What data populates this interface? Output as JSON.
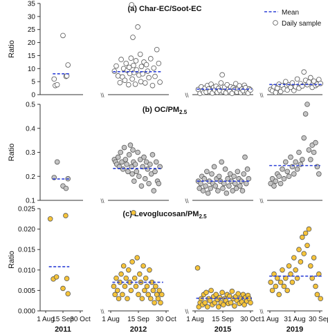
{
  "legend": {
    "mean_label": "Mean",
    "sample_label": "Daily sample"
  },
  "colors": {
    "mean_line": "#2b3fd6",
    "grey_fill": "#c4c4c4",
    "yellow_fill": "#f6c43a",
    "marker_edge": "#555555"
  },
  "x_ticks": [
    "1 Aug",
    "15 Sep",
    "30 Oct",
    "1 Aug",
    "15 Sep",
    "30 Oct",
    "1 Aug",
    "15 Sep",
    "30 Oct",
    "1 Aug",
    "31 Aug",
    "30 Sep"
  ],
  "years": [
    "2011",
    "2012",
    "2015",
    "2019"
  ],
  "break_mark": "\\\\",
  "chart_data": [
    {
      "type": "scatter",
      "title": "(a) Char-EC/Soot-EC",
      "ylabel": "Ratio",
      "ylim": [
        0,
        35
      ],
      "yticks": [
        0,
        5,
        10,
        15,
        20,
        25,
        30,
        35
      ],
      "marker": "open",
      "series": [
        {
          "year": "2011",
          "mean": 8.0,
          "x": [
            22,
            25,
            30,
            45,
            53,
            55,
            58
          ],
          "y": [
            6.0,
            3.5,
            3.8,
            22.7,
            7.0,
            7.2,
            11.4
          ]
        },
        {
          "year": "2012",
          "mean": 8.8,
          "x": [
            6,
            9,
            12,
            15,
            17,
            19,
            21,
            23,
            25,
            27,
            29,
            30,
            31,
            33,
            34,
            35,
            36,
            37,
            38,
            40,
            41,
            42,
            44,
            46,
            48,
            49,
            50,
            52,
            54,
            56,
            58,
            60,
            62,
            65,
            68,
            70,
            72,
            75,
            78,
            80
          ],
          "y": [
            9.0,
            11.0,
            7.2,
            4.6,
            13.5,
            6.8,
            10.0,
            5.5,
            12.0,
            9.3,
            3.8,
            10.5,
            8.1,
            14.0,
            34.5,
            6.0,
            22.0,
            11.2,
            8.5,
            4.0,
            13.0,
            9.5,
            26.0,
            7.5,
            15.5,
            5.0,
            10.8,
            8.0,
            12.5,
            4.5,
            11.5,
            9.0,
            6.5,
            13.8,
            3.5,
            10.2,
            7.0,
            17.3,
            12.0,
            4.8
          ]
        },
        {
          "year": "2015",
          "mean": 2.1,
          "x": [
            5,
            8,
            10,
            12,
            14,
            16,
            18,
            20,
            22,
            24,
            26,
            28,
            30,
            32,
            34,
            36,
            38,
            40,
            42,
            44,
            46,
            48,
            50,
            52,
            54,
            56,
            58,
            60,
            62,
            64,
            66,
            68,
            70,
            72,
            74,
            76,
            78,
            80,
            82,
            84,
            86,
            88,
            90
          ],
          "y": [
            2.0,
            0.5,
            3.0,
            1.5,
            0.8,
            2.5,
            1.0,
            3.5,
            2.2,
            1.2,
            4.0,
            0.6,
            2.8,
            1.8,
            3.2,
            0.9,
            2.4,
            1.6,
            4.5,
            7.6,
            1.1,
            2.9,
            0.7,
            3.8,
            2.0,
            1.4,
            3.0,
            0.5,
            2.6,
            1.9,
            4.2,
            1.0,
            2.3,
            3.4,
            0.8,
            2.1,
            1.5,
            3.6,
            2.7,
            1.2,
            0.6,
            2.2,
            1.8
          ]
        },
        {
          "year": "2019",
          "mean": 3.9,
          "x": [
            1,
            3,
            5,
            7,
            9,
            11,
            13,
            15,
            17,
            19,
            21,
            23,
            25,
            27,
            29,
            31,
            33,
            35,
            37,
            39,
            41,
            43,
            45,
            47,
            49,
            51,
            53,
            55,
            57,
            59,
            61
          ],
          "y": [
            2.0,
            1.5,
            3.0,
            0.8,
            2.5,
            4.0,
            1.2,
            3.5,
            2.2,
            5.0,
            1.8,
            3.8,
            2.8,
            4.5,
            1.6,
            3.0,
            6.0,
            2.5,
            4.2,
            3.3,
            8.7,
            5.5,
            3.8,
            4.8,
            6.5,
            2.8,
            5.2,
            3.5,
            4.0,
            5.8,
            4.3
          ]
        }
      ]
    },
    {
      "type": "scatter",
      "title": "(b) OC/PM",
      "title_sub": "2.5",
      "ylabel": "Ratio",
      "ylim": [
        0.1,
        0.5
      ],
      "yticks": [
        0.1,
        0.2,
        0.3,
        0.4,
        0.5
      ],
      "marker": "grey",
      "series": [
        {
          "year": "2011",
          "mean": 0.189,
          "x": [
            22,
            30,
            45,
            53,
            58
          ],
          "y": [
            0.195,
            0.26,
            0.16,
            0.15,
            0.19
          ]
        },
        {
          "year": "2012",
          "mean": 0.233,
          "x": [
            6,
            8,
            10,
            12,
            14,
            16,
            18,
            20,
            22,
            24,
            26,
            28,
            30,
            32,
            34,
            35,
            36,
            37,
            38,
            40,
            42,
            44,
            46,
            48,
            50,
            52,
            54,
            56,
            58,
            60,
            62,
            64,
            66,
            68,
            70,
            72,
            74,
            76,
            78,
            80
          ],
          "y": [
            0.27,
            0.26,
            0.25,
            0.28,
            0.24,
            0.3,
            0.26,
            0.23,
            0.32,
            0.27,
            0.25,
            0.22,
            0.29,
            0.33,
            0.24,
            0.21,
            0.31,
            0.26,
            0.18,
            0.25,
            0.22,
            0.3,
            0.2,
            0.27,
            0.16,
            0.24,
            0.28,
            0.19,
            0.26,
            0.23,
            0.17,
            0.25,
            0.21,
            0.29,
            0.14,
            0.22,
            0.26,
            0.18,
            0.17,
            0.24
          ]
        },
        {
          "year": "2015",
          "mean": 0.18,
          "x": [
            5,
            7,
            9,
            11,
            13,
            15,
            17,
            19,
            21,
            23,
            25,
            27,
            29,
            31,
            33,
            35,
            37,
            39,
            41,
            43,
            45,
            47,
            49,
            51,
            53,
            55,
            57,
            59,
            61,
            63,
            65,
            67,
            69,
            71,
            73,
            75,
            77,
            79,
            81,
            83,
            85,
            87
          ],
          "y": [
            0.18,
            0.15,
            0.17,
            0.2,
            0.14,
            0.19,
            0.16,
            0.22,
            0.13,
            0.18,
            0.15,
            0.21,
            0.17,
            0.24,
            0.16,
            0.19,
            0.14,
            0.2,
            0.18,
            0.26,
            0.15,
            0.17,
            0.23,
            0.13,
            0.19,
            0.16,
            0.21,
            0.18,
            0.14,
            0.2,
            0.17,
            0.15,
            0.22,
            0.19,
            0.16,
            0.18,
            0.14,
            0.21,
            0.28,
            0.17,
            0.23,
            0.19
          ]
        },
        {
          "year": "2019",
          "mean": 0.245,
          "x": [
            1,
            3,
            5,
            7,
            9,
            11,
            13,
            15,
            17,
            19,
            21,
            23,
            25,
            27,
            29,
            31,
            33,
            35,
            37,
            39,
            41,
            43,
            45,
            47,
            49,
            51,
            53,
            55,
            57,
            59
          ],
          "y": [
            0.17,
            0.19,
            0.16,
            0.18,
            0.21,
            0.2,
            0.17,
            0.23,
            0.19,
            0.26,
            0.22,
            0.2,
            0.28,
            0.24,
            0.21,
            0.26,
            0.23,
            0.3,
            0.25,
            0.27,
            0.36,
            0.46,
            0.5,
            0.31,
            0.27,
            0.33,
            0.3,
            0.34,
            0.24,
            0.21
          ]
        }
      ]
    },
    {
      "type": "scatter",
      "title": "(c) Levoglucosan/PM",
      "title_sub": "2.5",
      "ylabel": "Ratio",
      "ylim": [
        0,
        0.025
      ],
      "yticks": [
        0.0,
        0.005,
        0.01,
        0.015,
        0.02,
        0.025
      ],
      "ytick_labels": [
        "0.000",
        "0.005",
        "0.010",
        "0.015",
        "0.020",
        "0.025"
      ],
      "marker": "yellow",
      "series": [
        {
          "year": "2011",
          "mean": 0.0108,
          "x": [
            12,
            20,
            28,
            45,
            52,
            55,
            58
          ],
          "y": [
            0.0225,
            0.0078,
            0.0083,
            0.0055,
            0.0233,
            0.0079,
            0.0042
          ]
        },
        {
          "year": "2012",
          "mean": 0.007,
          "x": [
            5,
            7,
            9,
            11,
            13,
            15,
            17,
            19,
            21,
            23,
            25,
            27,
            29,
            31,
            33,
            35,
            37,
            39,
            41,
            43,
            45,
            47,
            49,
            51,
            53,
            55,
            57,
            59,
            61,
            63,
            65,
            67,
            69,
            71,
            73,
            75,
            77,
            79,
            81,
            83
          ],
          "y": [
            0.006,
            0.004,
            0.008,
            0.005,
            0.003,
            0.007,
            0.009,
            0.004,
            0.011,
            0.006,
            0.008,
            0.003,
            0.01,
            0.007,
            0.005,
            0.012,
            0.024,
            0.008,
            0.006,
            0.013,
            0.004,
            0.009,
            0.007,
            0.003,
            0.011,
            0.005,
            0.008,
            0.006,
            0.004,
            0.01,
            0.003,
            0.007,
            0.005,
            0.002,
            0.006,
            0.004,
            0.003,
            0.005,
            0.002,
            0.004
          ]
        },
        {
          "year": "2015",
          "mean": 0.0031,
          "x": [
            4,
            6,
            8,
            10,
            12,
            14,
            16,
            18,
            20,
            22,
            24,
            26,
            28,
            30,
            32,
            34,
            36,
            38,
            40,
            42,
            44,
            46,
            48,
            50,
            52,
            54,
            56,
            58,
            60,
            62,
            64,
            66,
            68,
            70,
            72,
            74,
            76,
            78,
            80,
            82,
            84,
            86,
            88,
            90
          ],
          "y": [
            0.0105,
            0.001,
            0.002,
            0.003,
            0.0015,
            0.004,
            0.002,
            0.0045,
            0.001,
            0.003,
            0.0025,
            0.005,
            0.0015,
            0.0035,
            0.002,
            0.004,
            0.0028,
            0.001,
            0.0033,
            0.002,
            0.0045,
            0.0015,
            0.003,
            0.0025,
            0.004,
            0.0018,
            0.0036,
            0.002,
            0.0048,
            0.003,
            0.0012,
            0.0035,
            0.0025,
            0.0042,
            0.0018,
            0.003,
            0.0022,
            0.004,
            0.0015,
            0.0033,
            0.0024,
            0.0038,
            0.003,
            0.002
          ]
        },
        {
          "year": "2019",
          "mean": 0.0085,
          "x": [
            1,
            3,
            5,
            7,
            9,
            11,
            13,
            15,
            17,
            19,
            21,
            23,
            25,
            27,
            29,
            31,
            33,
            35,
            37,
            39,
            41,
            43,
            45,
            47,
            49,
            51,
            53,
            55,
            57,
            59,
            61
          ],
          "y": [
            0.007,
            0.005,
            0.009,
            0.006,
            0.008,
            0.004,
            0.007,
            0.01,
            0.006,
            0.008,
            0.005,
            0.011,
            0.009,
            0.007,
            0.013,
            0.01,
            0.008,
            0.015,
            0.012,
            0.018,
            0.014,
            0.019,
            0.016,
            0.02,
            0.011,
            0.008,
            0.013,
            0.006,
            0.004,
            0.009,
            0.003
          ]
        }
      ]
    }
  ]
}
